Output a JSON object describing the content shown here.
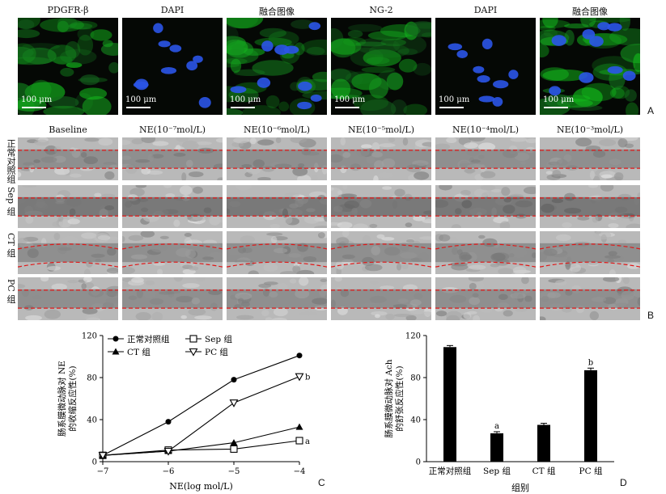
{
  "panel_a": {
    "channels": [
      "PDGFR-β",
      "DAPI",
      "融合图像",
      "NG-2",
      "DAPI",
      "融合图像"
    ],
    "tile_types": [
      "green",
      "blue",
      "merge",
      "green",
      "blue",
      "merge"
    ],
    "scale": "100 μm",
    "letter": "A"
  },
  "panel_b": {
    "columns": [
      "Baseline",
      "NE(10⁻⁷mol/L)",
      "NE(10⁻⁶mol/L)",
      "NE(10⁻⁵mol/L)",
      "NE(10⁻⁴mol/L)",
      "NE(10⁻³mol/L)"
    ],
    "rows": [
      "正常对照组",
      "Sep 组",
      "CT 组",
      "PC 组"
    ],
    "letter": "B"
  },
  "panel_c": {
    "letter": "C",
    "chart_data": {
      "type": "line",
      "xlabel": "NE(log mol/L)",
      "ylabel": "肠系膜微动脉对 NE 的收缩反应性(%)",
      "x": [
        -7,
        -6,
        -5,
        -4
      ],
      "xlim": [
        -7,
        -4
      ],
      "ylim": [
        0,
        120
      ],
      "yticks": [
        0,
        40,
        80,
        120
      ],
      "xticks": [
        "−7",
        "−6",
        "−5",
        "−4"
      ],
      "legend_position": "top",
      "series": [
        {
          "name": "正常对照组",
          "marker": "circle",
          "values": [
            6,
            38,
            78,
            101
          ]
        },
        {
          "name": "Sep 组",
          "marker": "square-open",
          "values": [
            6,
            11,
            12,
            20
          ],
          "annotation": "a"
        },
        {
          "name": "CT 组",
          "marker": "triangle",
          "values": [
            6,
            10,
            18,
            33
          ]
        },
        {
          "name": "PC 组",
          "marker": "triangle-down-open",
          "values": [
            6,
            10,
            56,
            81
          ],
          "annotation": "b"
        }
      ]
    }
  },
  "panel_d": {
    "letter": "D",
    "chart_data": {
      "type": "bar",
      "categories": [
        "正常对照组",
        "Sep 组",
        "CT 组",
        "PC 组"
      ],
      "values": [
        109,
        27,
        35,
        87
      ],
      "errors": [
        1.5,
        1.5,
        1.5,
        2
      ],
      "annotations": [
        "",
        "a",
        "",
        "b"
      ],
      "xlabel": "组别",
      "ylabel": "肠系膜微动脉对 Ach 的舒张反应性(%)",
      "ylim": [
        0,
        120
      ],
      "yticks": [
        0,
        40,
        80,
        120
      ]
    }
  }
}
